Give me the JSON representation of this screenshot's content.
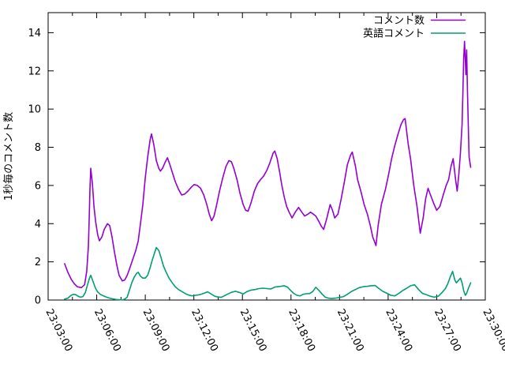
{
  "legend": {
    "entries": [
      {
        "label": "コメント数",
        "color": "#9400d3"
      },
      {
        "label": "英語コメント",
        "color": "#009e73"
      }
    ]
  },
  "chart_data": {
    "type": "line",
    "title": "",
    "xlabel": "",
    "ylabel": "1秒毎のコメント数",
    "ylim": [
      0,
      15
    ],
    "y_ticks": [
      0,
      2,
      4,
      6,
      8,
      10,
      12,
      14
    ],
    "x_tick_labels": [
      "23:03:00",
      "23:06:00",
      "23:09:00",
      "23:12:00",
      "23:15:00",
      "23:18:00",
      "23:21:00",
      "23:24:00",
      "23:27:00",
      "23:30:00"
    ],
    "x_unit": "seconds since 23:03:00",
    "x_range_seconds": [
      0,
      1620
    ],
    "x_tick_interval_seconds": 180,
    "x_minor_tick_interval_seconds": 90,
    "grid": false,
    "legend_position": "top-right-inside",
    "series": [
      {
        "name": "コメント数",
        "color": "#9400d3",
        "points": [
          [
            61,
            1.9
          ],
          [
            73,
            1.45
          ],
          [
            85,
            1.1
          ],
          [
            97,
            0.85
          ],
          [
            108,
            0.7
          ],
          [
            123,
            0.65
          ],
          [
            135,
            0.8
          ],
          [
            143,
            1.5
          ],
          [
            149,
            2.8
          ],
          [
            152,
            4.2
          ],
          [
            155,
            5.8
          ],
          [
            158,
            6.9
          ],
          [
            164,
            6.1
          ],
          [
            170,
            4.9
          ],
          [
            176,
            4.1
          ],
          [
            184,
            3.4
          ],
          [
            190,
            3.1
          ],
          [
            199,
            3.3
          ],
          [
            208,
            3.7
          ],
          [
            220,
            4.0
          ],
          [
            228,
            3.9
          ],
          [
            237,
            3.3
          ],
          [
            246,
            2.5
          ],
          [
            255,
            1.8
          ],
          [
            263,
            1.3
          ],
          [
            275,
            1.0
          ],
          [
            284,
            1.05
          ],
          [
            293,
            1.3
          ],
          [
            301,
            1.6
          ],
          [
            313,
            2.1
          ],
          [
            325,
            2.6
          ],
          [
            334,
            3.1
          ],
          [
            342,
            4.0
          ],
          [
            351,
            5.0
          ],
          [
            360,
            6.4
          ],
          [
            369,
            7.5
          ],
          [
            378,
            8.4
          ],
          [
            383,
            8.7
          ],
          [
            392,
            8.1
          ],
          [
            401,
            7.3
          ],
          [
            410,
            6.9
          ],
          [
            416,
            6.75
          ],
          [
            424,
            6.9
          ],
          [
            433,
            7.2
          ],
          [
            442,
            7.45
          ],
          [
            451,
            7.1
          ],
          [
            460,
            6.7
          ],
          [
            471,
            6.2
          ],
          [
            483,
            5.8
          ],
          [
            495,
            5.5
          ],
          [
            506,
            5.55
          ],
          [
            518,
            5.7
          ],
          [
            530,
            5.9
          ],
          [
            541,
            6.05
          ],
          [
            553,
            6.0
          ],
          [
            565,
            5.85
          ],
          [
            577,
            5.5
          ],
          [
            588,
            5.0
          ],
          [
            597,
            4.5
          ],
          [
            606,
            4.15
          ],
          [
            615,
            4.4
          ],
          [
            623,
            4.9
          ],
          [
            635,
            5.7
          ],
          [
            647,
            6.4
          ],
          [
            659,
            7.0
          ],
          [
            670,
            7.3
          ],
          [
            679,
            7.25
          ],
          [
            688,
            6.9
          ],
          [
            700,
            6.3
          ],
          [
            711,
            5.6
          ],
          [
            723,
            5.0
          ],
          [
            732,
            4.7
          ],
          [
            741,
            4.65
          ],
          [
            752,
            5.1
          ],
          [
            764,
            5.7
          ],
          [
            776,
            6.1
          ],
          [
            787,
            6.3
          ],
          [
            799,
            6.5
          ],
          [
            811,
            6.8
          ],
          [
            822,
            7.2
          ],
          [
            834,
            7.7
          ],
          [
            840,
            7.8
          ],
          [
            849,
            7.4
          ],
          [
            858,
            6.7
          ],
          [
            866,
            6.0
          ],
          [
            875,
            5.4
          ],
          [
            884,
            4.9
          ],
          [
            893,
            4.6
          ],
          [
            904,
            4.3
          ],
          [
            916,
            4.6
          ],
          [
            928,
            4.85
          ],
          [
            940,
            4.6
          ],
          [
            951,
            4.4
          ],
          [
            963,
            4.5
          ],
          [
            972,
            4.6
          ],
          [
            983,
            4.5
          ],
          [
            992,
            4.4
          ],
          [
            1004,
            4.1
          ],
          [
            1013,
            3.85
          ],
          [
            1021,
            3.7
          ],
          [
            1033,
            4.3
          ],
          [
            1045,
            5.0
          ],
          [
            1054,
            4.7
          ],
          [
            1062,
            4.3
          ],
          [
            1074,
            4.5
          ],
          [
            1086,
            5.3
          ],
          [
            1098,
            6.2
          ],
          [
            1109,
            7.1
          ],
          [
            1121,
            7.6
          ],
          [
            1127,
            7.75
          ],
          [
            1139,
            7.0
          ],
          [
            1147,
            6.3
          ],
          [
            1159,
            5.7
          ],
          [
            1171,
            5.0
          ],
          [
            1183,
            4.5
          ],
          [
            1194,
            3.9
          ],
          [
            1203,
            3.3
          ],
          [
            1215,
            2.85
          ],
          [
            1223,
            3.9
          ],
          [
            1235,
            5.0
          ],
          [
            1250,
            5.8
          ],
          [
            1262,
            6.6
          ],
          [
            1273,
            7.4
          ],
          [
            1285,
            8.1
          ],
          [
            1297,
            8.7
          ],
          [
            1308,
            9.2
          ],
          [
            1317,
            9.45
          ],
          [
            1323,
            9.5
          ],
          [
            1334,
            8.2
          ],
          [
            1343,
            7.4
          ],
          [
            1355,
            6.0
          ],
          [
            1367,
            4.9
          ],
          [
            1379,
            3.5
          ],
          [
            1390,
            4.3
          ],
          [
            1399,
            5.3
          ],
          [
            1408,
            5.85
          ],
          [
            1417,
            5.5
          ],
          [
            1428,
            5.1
          ],
          [
            1440,
            4.7
          ],
          [
            1452,
            4.9
          ],
          [
            1464,
            5.5
          ],
          [
            1475,
            6.0
          ],
          [
            1484,
            6.3
          ],
          [
            1493,
            7.0
          ],
          [
            1501,
            7.4
          ],
          [
            1510,
            6.3
          ],
          [
            1516,
            5.7
          ],
          [
            1522,
            6.6
          ],
          [
            1528,
            7.7
          ],
          [
            1534,
            9.2
          ],
          [
            1537,
            10.8
          ],
          [
            1540,
            12.6
          ],
          [
            1543,
            13.55
          ],
          [
            1546,
            12.6
          ],
          [
            1548,
            11.8
          ],
          [
            1551,
            13.1
          ],
          [
            1554,
            11.0
          ],
          [
            1557,
            9.1
          ],
          [
            1560,
            7.5
          ],
          [
            1566,
            6.95
          ]
        ]
      },
      {
        "name": "英語コメント",
        "color": "#009e73",
        "points": [
          [
            61,
            0.05
          ],
          [
            73,
            0.1
          ],
          [
            85,
            0.25
          ],
          [
            94,
            0.3
          ],
          [
            102,
            0.28
          ],
          [
            111,
            0.2
          ],
          [
            120,
            0.15
          ],
          [
            129,
            0.18
          ],
          [
            138,
            0.4
          ],
          [
            146,
            0.8
          ],
          [
            152,
            1.1
          ],
          [
            158,
            1.3
          ],
          [
            167,
            0.95
          ],
          [
            176,
            0.6
          ],
          [
            184,
            0.42
          ],
          [
            193,
            0.3
          ],
          [
            205,
            0.22
          ],
          [
            217,
            0.15
          ],
          [
            228,
            0.1
          ],
          [
            240,
            0.06
          ],
          [
            252,
            0.03
          ],
          [
            263,
            0.02
          ],
          [
            275,
            0.0
          ],
          [
            284,
            0.05
          ],
          [
            293,
            0.15
          ],
          [
            301,
            0.5
          ],
          [
            310,
            0.9
          ],
          [
            319,
            1.2
          ],
          [
            328,
            1.4
          ],
          [
            334,
            1.45
          ],
          [
            342,
            1.25
          ],
          [
            351,
            1.15
          ],
          [
            360,
            1.15
          ],
          [
            369,
            1.3
          ],
          [
            378,
            1.7
          ],
          [
            386,
            2.1
          ],
          [
            395,
            2.5
          ],
          [
            401,
            2.75
          ],
          [
            410,
            2.6
          ],
          [
            419,
            2.2
          ],
          [
            427,
            1.8
          ],
          [
            436,
            1.5
          ],
          [
            448,
            1.15
          ],
          [
            460,
            0.9
          ],
          [
            471,
            0.7
          ],
          [
            483,
            0.55
          ],
          [
            495,
            0.45
          ],
          [
            509,
            0.33
          ],
          [
            521,
            0.26
          ],
          [
            533,
            0.22
          ],
          [
            547,
            0.25
          ],
          [
            562,
            0.28
          ],
          [
            577,
            0.35
          ],
          [
            591,
            0.43
          ],
          [
            606,
            0.3
          ],
          [
            618,
            0.2
          ],
          [
            629,
            0.16
          ],
          [
            641,
            0.14
          ],
          [
            653,
            0.22
          ],
          [
            664,
            0.3
          ],
          [
            679,
            0.4
          ],
          [
            694,
            0.46
          ],
          [
            708,
            0.4
          ],
          [
            723,
            0.32
          ],
          [
            738,
            0.45
          ],
          [
            752,
            0.52
          ],
          [
            767,
            0.55
          ],
          [
            781,
            0.6
          ],
          [
            796,
            0.62
          ],
          [
            811,
            0.6
          ],
          [
            825,
            0.58
          ],
          [
            840,
            0.68
          ],
          [
            852,
            0.7
          ],
          [
            863,
            0.72
          ],
          [
            875,
            0.75
          ],
          [
            887,
            0.68
          ],
          [
            899,
            0.5
          ],
          [
            910,
            0.35
          ],
          [
            922,
            0.25
          ],
          [
            934,
            0.22
          ],
          [
            945,
            0.3
          ],
          [
            957,
            0.33
          ],
          [
            969,
            0.34
          ],
          [
            981,
            0.45
          ],
          [
            992,
            0.67
          ],
          [
            1004,
            0.5
          ],
          [
            1016,
            0.3
          ],
          [
            1027,
            0.15
          ],
          [
            1039,
            0.1
          ],
          [
            1051,
            0.08
          ],
          [
            1065,
            0.1
          ],
          [
            1080,
            0.14
          ],
          [
            1095,
            0.18
          ],
          [
            1109,
            0.3
          ],
          [
            1124,
            0.45
          ],
          [
            1139,
            0.55
          ],
          [
            1153,
            0.65
          ],
          [
            1168,
            0.7
          ],
          [
            1183,
            0.72
          ],
          [
            1197,
            0.75
          ],
          [
            1212,
            0.76
          ],
          [
            1226,
            0.6
          ],
          [
            1241,
            0.45
          ],
          [
            1256,
            0.35
          ],
          [
            1270,
            0.25
          ],
          [
            1285,
            0.22
          ],
          [
            1300,
            0.35
          ],
          [
            1314,
            0.5
          ],
          [
            1329,
            0.62
          ],
          [
            1343,
            0.75
          ],
          [
            1358,
            0.8
          ],
          [
            1373,
            0.55
          ],
          [
            1387,
            0.35
          ],
          [
            1402,
            0.28
          ],
          [
            1417,
            0.2
          ],
          [
            1431,
            0.15
          ],
          [
            1446,
            0.2
          ],
          [
            1460,
            0.4
          ],
          [
            1472,
            0.6
          ],
          [
            1481,
            0.85
          ],
          [
            1490,
            1.2
          ],
          [
            1499,
            1.5
          ],
          [
            1507,
            1.05
          ],
          [
            1513,
            0.9
          ],
          [
            1519,
            1.0
          ],
          [
            1528,
            1.15
          ],
          [
            1534,
            0.9
          ],
          [
            1540,
            0.5
          ],
          [
            1546,
            0.25
          ],
          [
            1551,
            0.35
          ],
          [
            1557,
            0.6
          ],
          [
            1566,
            0.9
          ]
        ]
      }
    ]
  }
}
